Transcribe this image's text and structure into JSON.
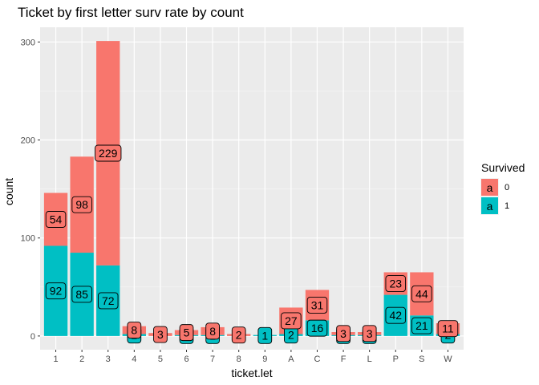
{
  "chart_data": {
    "type": "bar",
    "stacked": true,
    "title": "Ticket by first letter surv rate by count",
    "xlabel": "ticket.let",
    "ylabel": "count",
    "ylim": [
      -14,
      315
    ],
    "yticks": [
      0,
      100,
      200,
      300
    ],
    "grid": true,
    "legend": {
      "title": "Survived",
      "position": "right",
      "key_glyph": "a"
    },
    "categories": [
      "1",
      "2",
      "3",
      "4",
      "5",
      "6",
      "7",
      "8",
      "9",
      "A",
      "C",
      "F",
      "L",
      "P",
      "S",
      "W"
    ],
    "series": [
      {
        "name": "0",
        "color": "#F8766D",
        "values": [
          54,
          98,
          229,
          8,
          3,
          5,
          8,
          2,
          0,
          27,
          31,
          3,
          3,
          23,
          44,
          11
        ]
      },
      {
        "name": "1",
        "color": "#00BFC4",
        "values": [
          92,
          85,
          72,
          2,
          0,
          1,
          1,
          0,
          1,
          2,
          16,
          1,
          1,
          42,
          21,
          2
        ]
      }
    ],
    "annotations": [
      {
        "category": "1",
        "series": "0",
        "label": "54",
        "value": 119
      },
      {
        "category": "1",
        "series": "1",
        "label": "92",
        "value": 46
      },
      {
        "category": "2",
        "series": "0",
        "label": "98",
        "value": 134
      },
      {
        "category": "2",
        "series": "1",
        "label": "85",
        "value": 42.5
      },
      {
        "category": "3",
        "series": "0",
        "label": "229",
        "value": 186.5
      },
      {
        "category": "3",
        "series": "1",
        "label": "72",
        "value": 36
      },
      {
        "category": "4",
        "series": "0",
        "label": "8",
        "value": 6
      },
      {
        "category": "4",
        "series": "1",
        "label": "2",
        "value": 1
      },
      {
        "category": "5",
        "series": "0",
        "label": "3",
        "value": 1.5
      },
      {
        "category": "6",
        "series": "0",
        "label": "5",
        "value": 3.5
      },
      {
        "category": "6",
        "series": "1",
        "label": "1",
        "value": 0.5
      },
      {
        "category": "7",
        "series": "0",
        "label": "8",
        "value": 5
      },
      {
        "category": "7",
        "series": "1",
        "label": "1",
        "value": 0.5
      },
      {
        "category": "8",
        "series": "0",
        "label": "2",
        "value": 1
      },
      {
        "category": "9",
        "series": "1",
        "label": "1",
        "value": 0.5
      },
      {
        "category": "A",
        "series": "0",
        "label": "27",
        "value": 15.5
      },
      {
        "category": "A",
        "series": "1",
        "label": "2",
        "value": 1
      },
      {
        "category": "C",
        "series": "0",
        "label": "31",
        "value": 31.5
      },
      {
        "category": "C",
        "series": "1",
        "label": "16",
        "value": 8
      },
      {
        "category": "F",
        "series": "0",
        "label": "3",
        "value": 2.5
      },
      {
        "category": "F",
        "series": "1",
        "label": "1",
        "value": 0.5
      },
      {
        "category": "L",
        "series": "0",
        "label": "3",
        "value": 2.5
      },
      {
        "category": "L",
        "series": "1",
        "label": "1",
        "value": 0.5
      },
      {
        "category": "P",
        "series": "0",
        "label": "23",
        "value": 53.5
      },
      {
        "category": "P",
        "series": "1",
        "label": "42",
        "value": 21
      },
      {
        "category": "S",
        "series": "0",
        "label": "44",
        "value": 43
      },
      {
        "category": "S",
        "series": "1",
        "label": "21",
        "value": 10.5
      },
      {
        "category": "W",
        "series": "0",
        "label": "11",
        "value": 7.5
      },
      {
        "category": "W",
        "series": "1",
        "label": "2",
        "value": 1
      }
    ]
  }
}
